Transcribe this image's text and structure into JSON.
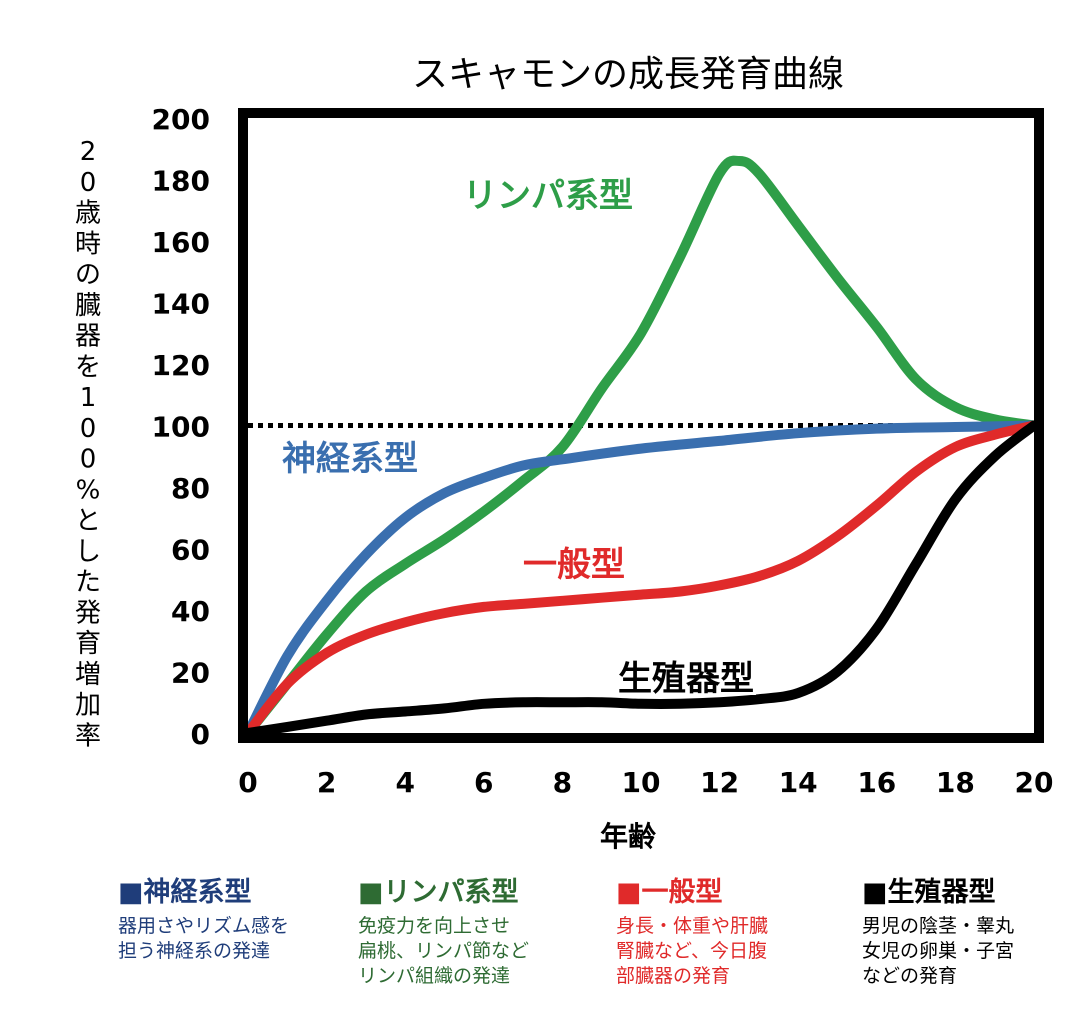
{
  "chart_data": {
    "type": "line",
    "title": "スキャモンの成長発育曲線",
    "xlabel": "年齢",
    "ylabel": "20歳時の臓器を100%とした発育増加率",
    "xlim": [
      0,
      20
    ],
    "ylim": [
      0,
      200
    ],
    "xticks": [
      0,
      2,
      4,
      6,
      8,
      10,
      12,
      14,
      16,
      18,
      20
    ],
    "yticks": [
      0,
      20,
      40,
      60,
      80,
      100,
      120,
      140,
      160,
      180,
      200
    ],
    "grid": false,
    "reference_line": {
      "y": 100,
      "style": "dotted"
    },
    "series": [
      {
        "name": "リンパ系型",
        "color": "#2e9e48",
        "x": [
          0,
          1,
          2,
          3,
          4,
          5,
          6,
          7,
          8,
          9,
          10,
          11,
          12,
          12.5,
          13,
          14,
          15,
          16,
          17,
          18,
          19,
          20
        ],
        "y": [
          0,
          16,
          32,
          46,
          55,
          63,
          72,
          82,
          93,
          112,
          130,
          155,
          182,
          186,
          182,
          165,
          148,
          132,
          115,
          106,
          102,
          100
        ]
      },
      {
        "name": "神経系型",
        "color": "#3a6faf",
        "x": [
          0,
          1,
          2,
          3,
          4,
          5,
          6,
          7,
          8,
          10,
          12,
          14,
          16,
          18,
          20
        ],
        "y": [
          0,
          25,
          43,
          58,
          70,
          78,
          83,
          87,
          89,
          92.5,
          95,
          97.5,
          99,
          99.5,
          100
        ]
      },
      {
        "name": "一般型",
        "color": "#e02a2a",
        "x": [
          0,
          1,
          2,
          3,
          4,
          5,
          6,
          7,
          8,
          9,
          10,
          11,
          12,
          13,
          14,
          15,
          16,
          17,
          18,
          19,
          20
        ],
        "y": [
          0,
          16,
          26,
          32,
          36,
          39,
          41,
          42,
          43,
          44,
          45,
          46,
          48,
          51,
          56,
          64,
          74,
          85,
          93,
          97,
          100
        ]
      },
      {
        "name": "生殖器型",
        "color": "#000000",
        "x": [
          0,
          1,
          2,
          3,
          4,
          5,
          6,
          7,
          8,
          9,
          10,
          11,
          12,
          13,
          14,
          15,
          16,
          17,
          18,
          19,
          20
        ],
        "y": [
          0,
          2,
          4,
          6,
          7,
          8,
          9.5,
          10,
          10,
          10,
          9.5,
          9.5,
          10,
          11,
          13,
          20,
          34,
          55,
          76,
          90,
          100
        ]
      }
    ],
    "annotations": [
      {
        "text": "リンパ系型",
        "color": "#2e9e48"
      },
      {
        "text": "神経系型",
        "color": "#3a6faf"
      },
      {
        "text": "一般型",
        "color": "#e02a2a"
      },
      {
        "text": "生殖器型",
        "color": "#000000"
      }
    ]
  },
  "legend": [
    {
      "title": "■神経系型",
      "color": "#1f3d7a",
      "desc": "器用さやリズム感を\n担う神経系の発達"
    },
    {
      "title": "■リンパ系型",
      "color": "#2e6b33",
      "desc": "免疫力を向上させ\n扁桃、リンパ節など\nリンパ組織の発達"
    },
    {
      "title": "■一般型",
      "color": "#e02a2a",
      "desc": "身長・体重や肝臓\n腎臓など、今日腹\n部臓器の発育"
    },
    {
      "title": "■生殖器型",
      "color": "#000000",
      "desc": "男児の陰茎・睾丸\n女児の卵巣・子宮\nなどの発育"
    }
  ]
}
